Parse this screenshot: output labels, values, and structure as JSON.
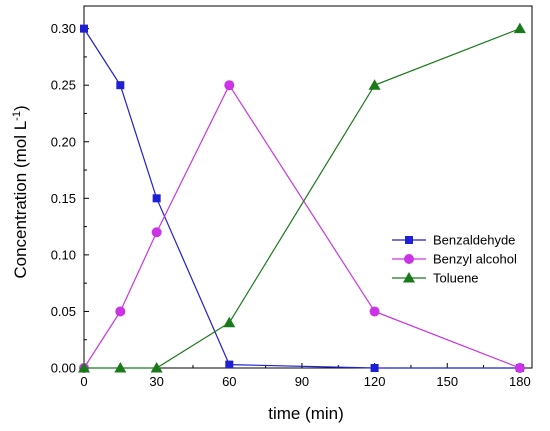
{
  "chart_data": {
    "type": "line",
    "xlabel": "time (min)",
    "ylabel": "Concentration (mol L",
    "ylabel_sup": "-1",
    "ylabel_end": ")",
    "xlim": [
      0,
      185
    ],
    "ylim": [
      0,
      0.32
    ],
    "x_ticks": [
      0,
      30,
      60,
      90,
      120,
      150,
      180
    ],
    "x_tick_labels": [
      "0",
      "30",
      "60",
      "90",
      "120",
      "150",
      "180"
    ],
    "y_ticks": [
      0,
      0.05,
      0.1,
      0.15,
      0.2,
      0.25,
      0.3
    ],
    "y_tick_labels": [
      "0.00",
      "0.05",
      "0.10",
      "0.15",
      "0.20",
      "0.25",
      "0.30"
    ],
    "grid": false,
    "legend_position": "right",
    "x": [
      0,
      15,
      30,
      60,
      120,
      180
    ],
    "series": [
      {
        "name": "Benzaldehyde",
        "marker": "square",
        "color": "#1f1fd4",
        "values": [
          0.3,
          0.25,
          0.15,
          0.003,
          0.0,
          0.0
        ]
      },
      {
        "name": "Benzyl alcohol",
        "marker": "circle",
        "color": "#cc33e6",
        "values": [
          0.0,
          0.05,
          0.12,
          0.25,
          0.05,
          0.0
        ]
      },
      {
        "name": "Toluene",
        "marker": "triangle",
        "color": "#1a7a1a",
        "values": [
          0.0,
          0.0,
          0.0,
          0.04,
          0.25,
          0.3
        ]
      }
    ]
  }
}
